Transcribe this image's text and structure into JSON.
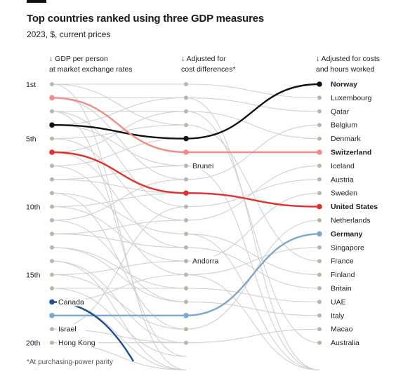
{
  "title": "Top countries ranked using three GDP measures",
  "subtitle": "2023, $, current prices",
  "columns": [
    {
      "arrow": "↓",
      "line1": "GDP per person",
      "line2": "at market exchange rates"
    },
    {
      "arrow": "↓",
      "line1": "Adjusted for",
      "line2": "cost differences*"
    },
    {
      "arrow": "↓",
      "line1": "Adjusted for costs",
      "line2": "and hours worked"
    }
  ],
  "footnote": "*At purchasing-power parity",
  "chart_data": {
    "type": "slope",
    "rank_ticks": [
      {
        "rank": 1,
        "label": "1st"
      },
      {
        "rank": 5,
        "label": "5th"
      },
      {
        "rank": 10,
        "label": "10th"
      },
      {
        "rank": 15,
        "label": "15th"
      },
      {
        "rank": 20,
        "label": "20th"
      }
    ],
    "col1_labels": [
      {
        "rank": 17,
        "name": "Canada"
      },
      {
        "rank": 19,
        "name": "Israel"
      },
      {
        "rank": 20,
        "name": "Hong Kong"
      }
    ],
    "col2_labels": [
      {
        "rank": 7,
        "name": "Brunei"
      },
      {
        "rank": 14,
        "name": "Andorra"
      }
    ],
    "col3_labels": [
      "Norway",
      "Luxembourg",
      "Qatar",
      "Belgium",
      "Denmark",
      "Switzerland",
      "Iceland",
      "Austria",
      "Sweden",
      "United States",
      "Netherlands",
      "Germany",
      "Singapore",
      "France",
      "Finland",
      "Britain",
      "UAE",
      "Italy",
      "Macao",
      "Australia"
    ],
    "highlighted": [
      {
        "name": "Norway",
        "color": "#111111",
        "ranks": [
          4,
          5,
          1
        ]
      },
      {
        "name": "Switzerland",
        "color": "#f28b88",
        "ranks": [
          2,
          6,
          6
        ]
      },
      {
        "name": "United States",
        "color": "#e0312b",
        "ranks": [
          6,
          9,
          10
        ]
      },
      {
        "name": "Germany",
        "color": "#7fa6cc",
        "ranks": [
          18,
          18,
          12
        ]
      },
      {
        "name": "Canada",
        "color": "#1d4f8f",
        "ranks": [
          17,
          null,
          null
        ]
      }
    ],
    "background_links": [
      [
        1,
        1
      ],
      [
        1,
        4
      ],
      [
        2,
        2
      ],
      [
        2,
        8
      ],
      [
        3,
        3
      ],
      [
        3,
        10
      ],
      [
        4,
        7
      ],
      [
        4,
        2
      ],
      [
        5,
        11
      ],
      [
        5,
        4
      ],
      [
        6,
        13
      ],
      [
        6,
        3
      ],
      [
        7,
        15
      ],
      [
        7,
        5
      ],
      [
        8,
        9
      ],
      [
        8,
        7
      ],
      [
        9,
        12
      ],
      [
        9,
        19
      ],
      [
        10,
        14
      ],
      [
        10,
        9
      ],
      [
        11,
        17
      ],
      [
        11,
        8
      ],
      [
        12,
        13
      ],
      [
        12,
        11
      ],
      [
        13,
        16
      ],
      [
        13,
        17
      ],
      [
        14,
        20
      ],
      [
        14,
        22
      ],
      [
        15,
        19
      ],
      [
        15,
        14
      ],
      [
        16,
        21
      ],
      [
        16,
        16
      ],
      [
        17,
        22
      ],
      [
        17,
        15
      ],
      [
        19,
        10
      ],
      [
        19,
        20
      ],
      [
        20,
        20
      ],
      [
        20,
        22
      ],
      [
        3,
        21
      ],
      [
        1,
        22
      ]
    ],
    "background_links_mid_to_right": [
      [
        1,
        2
      ],
      [
        2,
        3
      ],
      [
        3,
        5
      ],
      [
        4,
        14
      ],
      [
        7,
        22
      ],
      [
        8,
        4
      ],
      [
        10,
        8
      ],
      [
        11,
        7
      ],
      [
        12,
        15
      ],
      [
        13,
        16
      ],
      [
        14,
        9
      ],
      [
        15,
        13
      ],
      [
        16,
        17
      ],
      [
        17,
        18
      ],
      [
        19,
        11
      ],
      [
        20,
        19
      ],
      [
        3,
        20
      ],
      [
        2,
        22
      ],
      [
        12,
        22
      ],
      [
        15,
        22
      ]
    ]
  }
}
